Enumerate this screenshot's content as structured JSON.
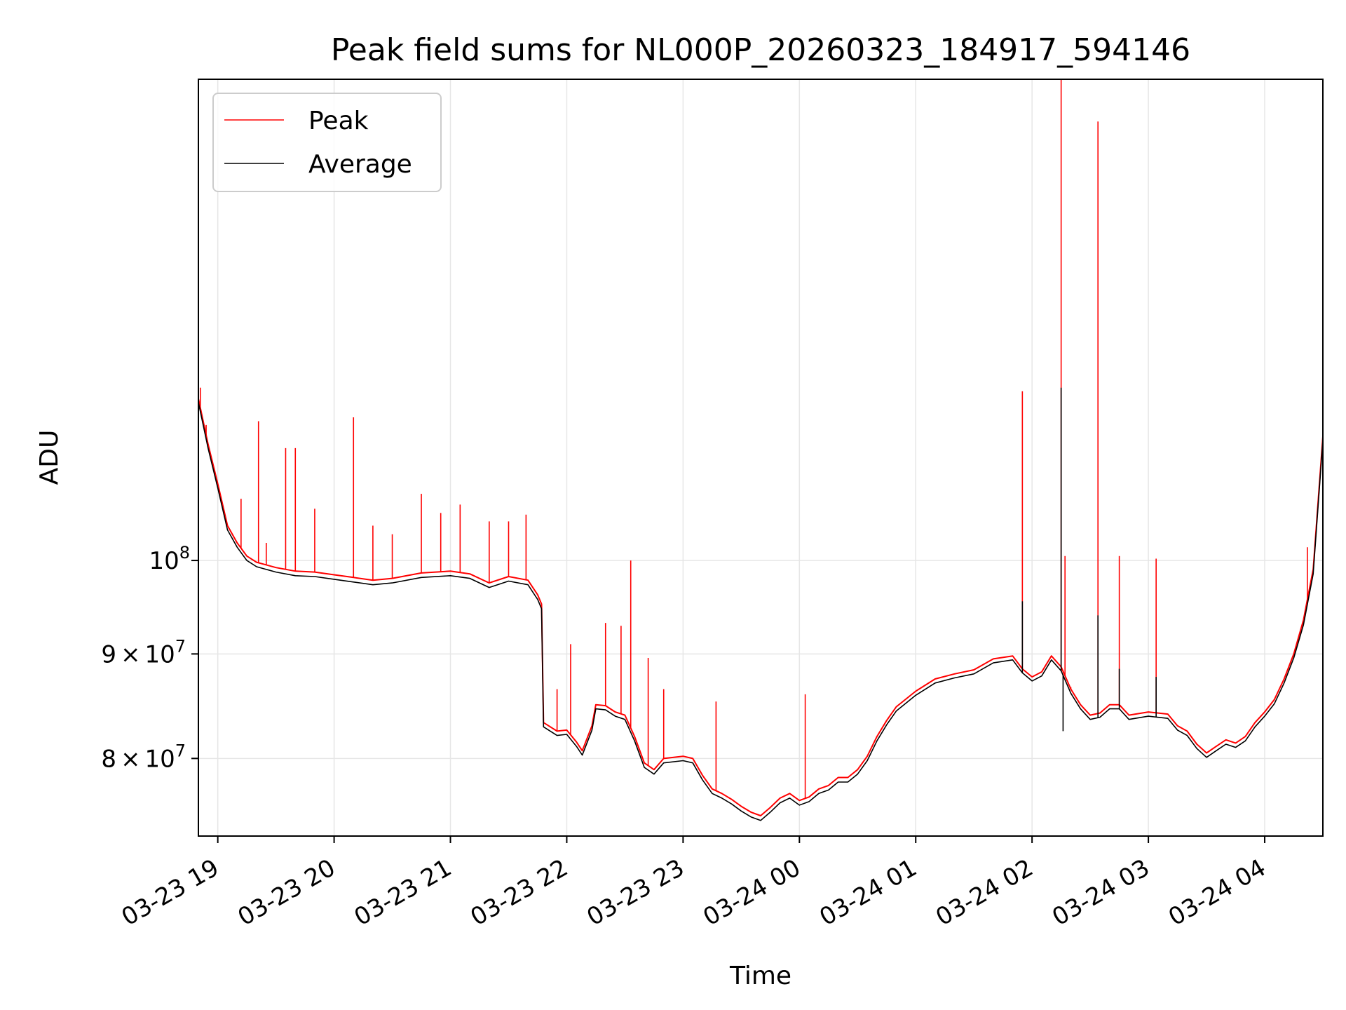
{
  "chart_data": {
    "type": "line",
    "title": "Peak field sums for NL000P_20260323_184917_594146",
    "xlabel": "Time",
    "ylabel": "ADU",
    "x_scale": "time",
    "y_scale": "log",
    "xlim": [
      "2026-03-23T18:50",
      "2026-03-24T04:30"
    ],
    "ylim": [
      73300000,
      172000000
    ],
    "grid": true,
    "legend_position": "top-left",
    "x_ticks": [
      {
        "value": "2026-03-23T19:00",
        "label": "03-23 19"
      },
      {
        "value": "2026-03-23T20:00",
        "label": "03-23 20"
      },
      {
        "value": "2026-03-23T21:00",
        "label": "03-23 21"
      },
      {
        "value": "2026-03-23T22:00",
        "label": "03-23 22"
      },
      {
        "value": "2026-03-23T23:00",
        "label": "03-23 23"
      },
      {
        "value": "2026-03-24T00:00",
        "label": "03-24 00"
      },
      {
        "value": "2026-03-24T01:00",
        "label": "03-24 01"
      },
      {
        "value": "2026-03-24T02:00",
        "label": "03-24 02"
      },
      {
        "value": "2026-03-24T03:00",
        "label": "03-24 03"
      },
      {
        "value": "2026-03-24T04:00",
        "label": "03-24 04"
      }
    ],
    "y_ticks": [
      {
        "value": 80000000,
        "base": "8",
        "mult": "×",
        "power": "10",
        "exp": "7"
      },
      {
        "value": 90000000,
        "base": "9",
        "mult": "×",
        "power": "10",
        "exp": "7"
      },
      {
        "value": 100000000,
        "base": "",
        "mult": "",
        "power": "10",
        "exp": "8"
      }
    ],
    "series": [
      {
        "name": "Peak",
        "color": "#ff0000",
        "points": [
          [
            "2026-03-23T18:50",
            120000000
          ],
          [
            "2026-03-23T18:55",
            114000000
          ],
          [
            "2026-03-23T19:00",
            109000000
          ],
          [
            "2026-03-23T19:05",
            104000000
          ],
          [
            "2026-03-23T19:10",
            102000000
          ],
          [
            "2026-03-23T19:15",
            100500000
          ],
          [
            "2026-03-23T19:20",
            99800000
          ],
          [
            "2026-03-23T19:30",
            99200000
          ],
          [
            "2026-03-23T19:40",
            98800000
          ],
          [
            "2026-03-23T19:50",
            98700000
          ],
          [
            "2026-03-23T20:00",
            98400000
          ],
          [
            "2026-03-23T20:10",
            98100000
          ],
          [
            "2026-03-23T20:20",
            97800000
          ],
          [
            "2026-03-23T20:30",
            98000000
          ],
          [
            "2026-03-23T20:45",
            98600000
          ],
          [
            "2026-03-23T21:00",
            98800000
          ],
          [
            "2026-03-23T21:10",
            98500000
          ],
          [
            "2026-03-23T21:20",
            97500000
          ],
          [
            "2026-03-23T21:30",
            98200000
          ],
          [
            "2026-03-23T21:40",
            97800000
          ],
          [
            "2026-03-23T21:45",
            96200000
          ],
          [
            "2026-03-23T21:47",
            95200000
          ],
          [
            "2026-03-23T21:48",
            83300000
          ],
          [
            "2026-03-23T21:55",
            82500000
          ],
          [
            "2026-03-23T22:00",
            82600000
          ],
          [
            "2026-03-23T22:05",
            81500000
          ],
          [
            "2026-03-23T22:08",
            80700000
          ],
          [
            "2026-03-23T22:13",
            83000000
          ],
          [
            "2026-03-23T22:15",
            85000000
          ],
          [
            "2026-03-23T22:20",
            84900000
          ],
          [
            "2026-03-23T22:25",
            84300000
          ],
          [
            "2026-03-23T22:30",
            84000000
          ],
          [
            "2026-03-23T22:35",
            82000000
          ],
          [
            "2026-03-23T22:40",
            79600000
          ],
          [
            "2026-03-23T22:45",
            79000000
          ],
          [
            "2026-03-23T22:50",
            80000000
          ],
          [
            "2026-03-23T23:00",
            80200000
          ],
          [
            "2026-03-23T23:05",
            80000000
          ],
          [
            "2026-03-23T23:10",
            78500000
          ],
          [
            "2026-03-23T23:15",
            77300000
          ],
          [
            "2026-03-23T23:20",
            76900000
          ],
          [
            "2026-03-23T23:25",
            76400000
          ],
          [
            "2026-03-23T23:30",
            75800000
          ],
          [
            "2026-03-23T23:35",
            75300000
          ],
          [
            "2026-03-23T23:40",
            75000000
          ],
          [
            "2026-03-23T23:45",
            75700000
          ],
          [
            "2026-03-23T23:50",
            76500000
          ],
          [
            "2026-03-23T23:55",
            76900000
          ],
          [
            "2026-03-24T00:00",
            76300000
          ],
          [
            "2026-03-24T00:05",
            76600000
          ],
          [
            "2026-03-24T00:10",
            77300000
          ],
          [
            "2026-03-24T00:15",
            77600000
          ],
          [
            "2026-03-24T00:20",
            78300000
          ],
          [
            "2026-03-24T00:25",
            78300000
          ],
          [
            "2026-03-24T00:30",
            79000000
          ],
          [
            "2026-03-24T00:35",
            80200000
          ],
          [
            "2026-03-24T00:40",
            82000000
          ],
          [
            "2026-03-24T00:45",
            83500000
          ],
          [
            "2026-03-24T00:50",
            84800000
          ],
          [
            "2026-03-24T01:00",
            86300000
          ],
          [
            "2026-03-24T01:10",
            87500000
          ],
          [
            "2026-03-24T01:20",
            88000000
          ],
          [
            "2026-03-24T01:30",
            88400000
          ],
          [
            "2026-03-24T01:40",
            89500000
          ],
          [
            "2026-03-24T01:50",
            89800000
          ],
          [
            "2026-03-24T01:55",
            88500000
          ],
          [
            "2026-03-24T02:00",
            87700000
          ],
          [
            "2026-03-24T02:05",
            88200000
          ],
          [
            "2026-03-24T02:10",
            89800000
          ],
          [
            "2026-03-24T02:15",
            88700000
          ],
          [
            "2026-03-24T02:20",
            86500000
          ],
          [
            "2026-03-24T02:25",
            85000000
          ],
          [
            "2026-03-24T02:30",
            84000000
          ],
          [
            "2026-03-24T02:35",
            84200000
          ],
          [
            "2026-03-24T02:40",
            85000000
          ],
          [
            "2026-03-24T02:45",
            85000000
          ],
          [
            "2026-03-24T02:50",
            84000000
          ],
          [
            "2026-03-24T03:00",
            84300000
          ],
          [
            "2026-03-24T03:10",
            84100000
          ],
          [
            "2026-03-24T03:15",
            83000000
          ],
          [
            "2026-03-24T03:20",
            82500000
          ],
          [
            "2026-03-24T03:25",
            81300000
          ],
          [
            "2026-03-24T03:30",
            80500000
          ],
          [
            "2026-03-24T03:35",
            81100000
          ],
          [
            "2026-03-24T03:40",
            81700000
          ],
          [
            "2026-03-24T03:45",
            81400000
          ],
          [
            "2026-03-24T03:50",
            82000000
          ],
          [
            "2026-03-24T03:55",
            83300000
          ],
          [
            "2026-03-24T04:00",
            84300000
          ],
          [
            "2026-03-24T04:05",
            85500000
          ],
          [
            "2026-03-24T04:10",
            87500000
          ],
          [
            "2026-03-24T04:15",
            90000000
          ],
          [
            "2026-03-24T04:20",
            93500000
          ],
          [
            "2026-03-24T04:25",
            99000000
          ],
          [
            "2026-03-24T04:30",
            115000000
          ]
        ],
        "spikes": [
          [
            "2026-03-23T18:51",
            121500000
          ],
          [
            "2026-03-23T18:54",
            116500000
          ],
          [
            "2026-03-23T19:12",
            107200000
          ],
          [
            "2026-03-23T19:21",
            117000000
          ],
          [
            "2026-03-23T19:25",
            102000000
          ],
          [
            "2026-03-23T19:35",
            113500000
          ],
          [
            "2026-03-23T19:40",
            113500000
          ],
          [
            "2026-03-23T19:50",
            106000000
          ],
          [
            "2026-03-23T20:10",
            117500000
          ],
          [
            "2026-03-23T20:20",
            104000000
          ],
          [
            "2026-03-23T20:30",
            103000000
          ],
          [
            "2026-03-23T20:45",
            107800000
          ],
          [
            "2026-03-23T20:55",
            105500000
          ],
          [
            "2026-03-23T21:05",
            106500000
          ],
          [
            "2026-03-23T21:20",
            104500000
          ],
          [
            "2026-03-23T21:30",
            104500000
          ],
          [
            "2026-03-23T21:39",
            105300000
          ],
          [
            "2026-03-23T21:55",
            86500000
          ],
          [
            "2026-03-23T22:02",
            91000000
          ],
          [
            "2026-03-23T22:20",
            93200000
          ],
          [
            "2026-03-23T22:28",
            92900000
          ],
          [
            "2026-03-23T22:33",
            100000000
          ],
          [
            "2026-03-23T22:42",
            89600000
          ],
          [
            "2026-03-23T22:50",
            86500000
          ],
          [
            "2026-03-23T23:17",
            85300000
          ],
          [
            "2026-03-24T00:03",
            86000000
          ],
          [
            "2026-03-24T01:55",
            121000000
          ],
          [
            "2026-03-24T02:15",
            172000000
          ],
          [
            "2026-03-24T02:17",
            100500000
          ],
          [
            "2026-03-24T02:20",
            86700000
          ],
          [
            "2026-03-24T02:34",
            164000000
          ],
          [
            "2026-03-24T02:45",
            100500000
          ],
          [
            "2026-03-24T03:04",
            100200000
          ],
          [
            "2026-03-24T04:22",
            101500000
          ]
        ]
      },
      {
        "name": "Average",
        "color": "#000000",
        "points": [
          [
            "2026-03-23T18:50",
            119500000
          ],
          [
            "2026-03-23T18:55",
            113500000
          ],
          [
            "2026-03-23T19:00",
            108500000
          ],
          [
            "2026-03-23T19:05",
            103500000
          ],
          [
            "2026-03-23T19:10",
            101500000
          ],
          [
            "2026-03-23T19:15",
            100000000
          ],
          [
            "2026-03-23T19:20",
            99300000
          ],
          [
            "2026-03-23T19:30",
            98700000
          ],
          [
            "2026-03-23T19:40",
            98300000
          ],
          [
            "2026-03-23T19:50",
            98200000
          ],
          [
            "2026-03-23T20:00",
            97900000
          ],
          [
            "2026-03-23T20:10",
            97600000
          ],
          [
            "2026-03-23T20:20",
            97300000
          ],
          [
            "2026-03-23T20:30",
            97500000
          ],
          [
            "2026-03-23T20:45",
            98100000
          ],
          [
            "2026-03-23T21:00",
            98300000
          ],
          [
            "2026-03-23T21:10",
            98000000
          ],
          [
            "2026-03-23T21:20",
            97000000
          ],
          [
            "2026-03-23T21:30",
            97700000
          ],
          [
            "2026-03-23T21:40",
            97300000
          ],
          [
            "2026-03-23T21:45",
            95700000
          ],
          [
            "2026-03-23T21:47",
            94700000
          ],
          [
            "2026-03-23T21:48",
            82900000
          ],
          [
            "2026-03-23T21:55",
            82100000
          ],
          [
            "2026-03-23T22:00",
            82200000
          ],
          [
            "2026-03-23T22:05",
            81100000
          ],
          [
            "2026-03-23T22:08",
            80300000
          ],
          [
            "2026-03-23T22:13",
            82600000
          ],
          [
            "2026-03-23T22:15",
            84600000
          ],
          [
            "2026-03-23T22:20",
            84500000
          ],
          [
            "2026-03-23T22:25",
            83900000
          ],
          [
            "2026-03-23T22:30",
            83600000
          ],
          [
            "2026-03-23T22:35",
            81600000
          ],
          [
            "2026-03-23T22:40",
            79200000
          ],
          [
            "2026-03-23T22:45",
            78600000
          ],
          [
            "2026-03-23T22:50",
            79600000
          ],
          [
            "2026-03-23T23:00",
            79800000
          ],
          [
            "2026-03-23T23:05",
            79600000
          ],
          [
            "2026-03-23T23:10",
            78100000
          ],
          [
            "2026-03-23T23:15",
            76900000
          ],
          [
            "2026-03-23T23:20",
            76500000
          ],
          [
            "2026-03-23T23:25",
            76000000
          ],
          [
            "2026-03-23T23:30",
            75400000
          ],
          [
            "2026-03-23T23:35",
            74900000
          ],
          [
            "2026-03-23T23:40",
            74600000
          ],
          [
            "2026-03-23T23:45",
            75300000
          ],
          [
            "2026-03-23T23:50",
            76100000
          ],
          [
            "2026-03-23T23:55",
            76500000
          ],
          [
            "2026-03-24T00:00",
            75900000
          ],
          [
            "2026-03-24T00:05",
            76200000
          ],
          [
            "2026-03-24T00:10",
            76900000
          ],
          [
            "2026-03-24T00:15",
            77200000
          ],
          [
            "2026-03-24T00:20",
            77900000
          ],
          [
            "2026-03-24T00:25",
            77900000
          ],
          [
            "2026-03-24T00:30",
            78600000
          ],
          [
            "2026-03-24T00:35",
            79800000
          ],
          [
            "2026-03-24T00:40",
            81600000
          ],
          [
            "2026-03-24T00:45",
            83100000
          ],
          [
            "2026-03-24T00:50",
            84400000
          ],
          [
            "2026-03-24T01:00",
            85900000
          ],
          [
            "2026-03-24T01:10",
            87100000
          ],
          [
            "2026-03-24T01:20",
            87600000
          ],
          [
            "2026-03-24T01:30",
            88000000
          ],
          [
            "2026-03-24T01:40",
            89100000
          ],
          [
            "2026-03-24T01:50",
            89400000
          ],
          [
            "2026-03-24T01:55",
            88100000
          ],
          [
            "2026-03-24T02:00",
            87300000
          ],
          [
            "2026-03-24T02:05",
            87800000
          ],
          [
            "2026-03-24T02:10",
            89400000
          ],
          [
            "2026-03-24T02:15",
            88300000
          ],
          [
            "2026-03-24T02:20",
            86100000
          ],
          [
            "2026-03-24T02:25",
            84600000
          ],
          [
            "2026-03-24T02:30",
            83600000
          ],
          [
            "2026-03-24T02:35",
            83800000
          ],
          [
            "2026-03-24T02:40",
            84600000
          ],
          [
            "2026-03-24T02:45",
            84600000
          ],
          [
            "2026-03-24T02:50",
            83600000
          ],
          [
            "2026-03-24T03:00",
            83900000
          ],
          [
            "2026-03-24T03:10",
            83700000
          ],
          [
            "2026-03-24T03:15",
            82600000
          ],
          [
            "2026-03-24T03:20",
            82100000
          ],
          [
            "2026-03-24T03:25",
            80900000
          ],
          [
            "2026-03-24T03:30",
            80100000
          ],
          [
            "2026-03-24T03:35",
            80700000
          ],
          [
            "2026-03-24T03:40",
            81300000
          ],
          [
            "2026-03-24T03:45",
            81000000
          ],
          [
            "2026-03-24T03:50",
            81600000
          ],
          [
            "2026-03-24T03:55",
            82900000
          ],
          [
            "2026-03-24T04:00",
            83900000
          ],
          [
            "2026-03-24T04:05",
            85100000
          ],
          [
            "2026-03-24T04:10",
            87100000
          ],
          [
            "2026-03-24T04:15",
            89600000
          ],
          [
            "2026-03-24T04:20",
            93000000
          ],
          [
            "2026-03-24T04:25",
            98500000
          ],
          [
            "2026-03-24T04:30",
            114500000
          ]
        ],
        "spikes": [
          [
            "2026-03-24T01:55",
            95500000
          ],
          [
            "2026-03-24T02:15",
            121500000
          ],
          [
            "2026-03-24T02:34",
            94000000
          ],
          [
            "2026-03-24T02:45",
            88500000
          ],
          [
            "2026-03-24T03:04",
            87700000
          ],
          [
            "2026-03-24T02:16",
            82500000
          ]
        ]
      }
    ]
  }
}
